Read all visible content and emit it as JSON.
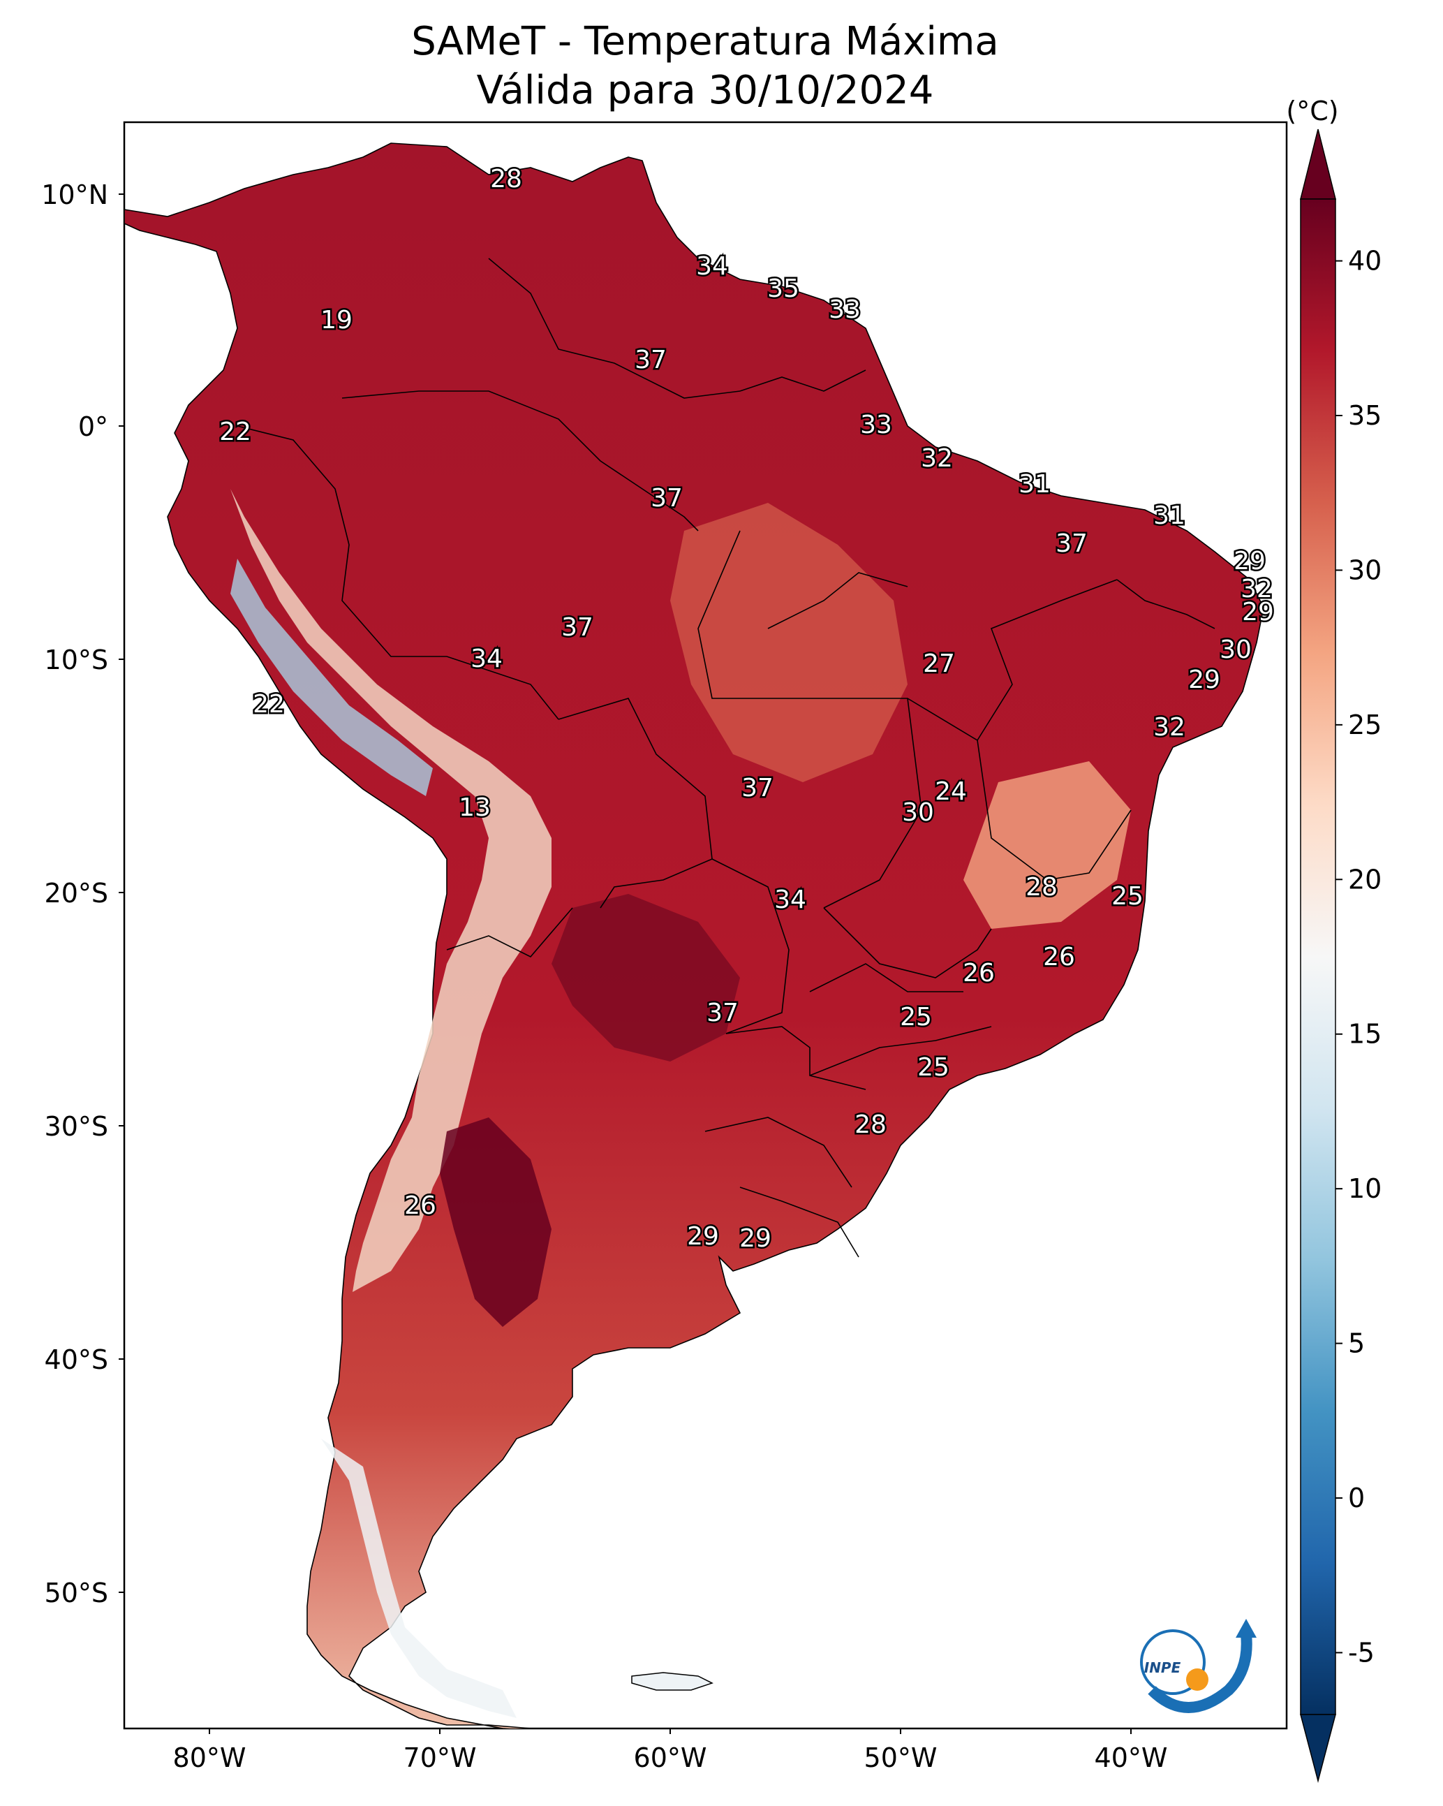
{
  "title": {
    "line1": "SAMeT - Temperatura Máxima",
    "line2": "Válida para 30/10/2024"
  },
  "colorbar": {
    "unit": "(°C)",
    "ticks": [
      "40",
      "35",
      "30",
      "25",
      "20",
      "15",
      "10",
      "5",
      "0",
      "-5"
    ],
    "min": -7,
    "max": 42,
    "colors": [
      "#053061",
      "#2166ac",
      "#4393c3",
      "#92c5de",
      "#d1e5f0",
      "#f7f7f7",
      "#fddbc7",
      "#f4a582",
      "#d6604d",
      "#b2182b",
      "#67001f"
    ]
  },
  "axes": {
    "lat_labels": [
      "10°N",
      "0°",
      "10°S",
      "20°S",
      "30°S",
      "40°S",
      "50°S"
    ],
    "lon_labels": [
      "80°W",
      "70°W",
      "60°W",
      "50°W",
      "40°W"
    ]
  },
  "map_values": [
    "28",
    "19",
    "34",
    "35",
    "33",
    "37",
    "22",
    "33",
    "32",
    "37",
    "31",
    "31",
    "37",
    "29",
    "32",
    "29",
    "37",
    "30",
    "34",
    "27",
    "29",
    "22",
    "32",
    "24",
    "37",
    "13",
    "30",
    "28",
    "25",
    "34",
    "26",
    "26",
    "37",
    "25",
    "25",
    "28",
    "26",
    "29",
    "29"
  ],
  "logo": {
    "text": "INPE"
  }
}
